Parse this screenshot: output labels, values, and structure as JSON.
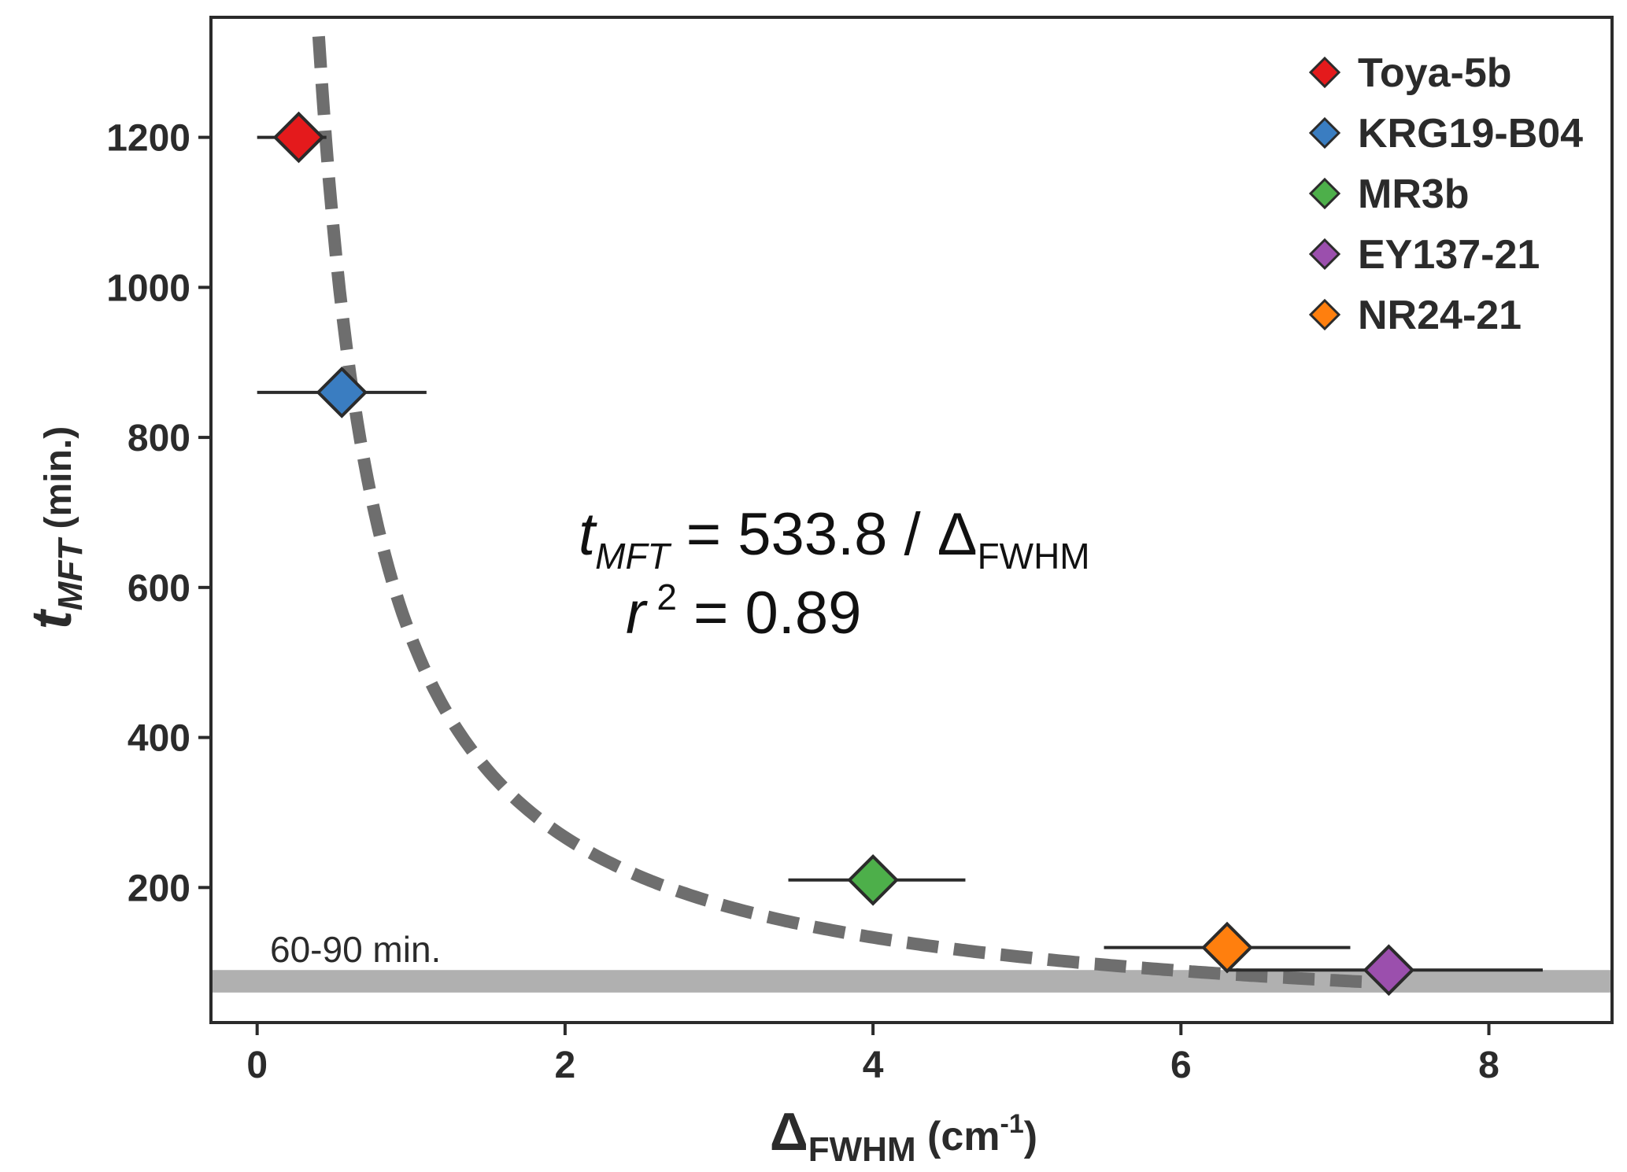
{
  "chart_data": {
    "type": "scatter",
    "title": "",
    "xlabel": {
      "main": "Δ",
      "sub": "FWHM",
      "unit_open": " (cm",
      "unit_sup": "-1",
      "unit_close": ")"
    },
    "ylabel": {
      "main": "t",
      "sub": "MFT",
      "unit": " (min.)"
    },
    "xlim": [
      -0.3,
      8.8
    ],
    "ylim": [
      20,
      1360
    ],
    "xticks": [
      0,
      2,
      4,
      6,
      8
    ],
    "yticks": [
      200,
      400,
      600,
      800,
      1000,
      1200
    ],
    "series": [
      {
        "name": "Toya-5b",
        "color": "#e41a1c",
        "x": 0.27,
        "y": 1200,
        "xerr_low": 0.0,
        "xerr_high": 0.45
      },
      {
        "name": "KRG19-B04",
        "color": "#3a7dc1",
        "x": 0.55,
        "y": 860,
        "xerr_low": 0.0,
        "xerr_high": 1.1
      },
      {
        "name": "MR3b",
        "color": "#4daf4a",
        "x": 4.0,
        "y": 210,
        "xerr_low": 3.45,
        "xerr_high": 4.6
      },
      {
        "name": "EY137-21",
        "color": "#9b4fad",
        "x": 7.35,
        "y": 90,
        "xerr_low": 6.3,
        "xerr_high": 8.35
      },
      {
        "name": "NR24-21",
        "color": "#ff7f0e",
        "x": 6.3,
        "y": 120,
        "xerr_low": 5.5,
        "xerr_high": 7.1
      }
    ],
    "fit": {
      "type": "inverse",
      "coefficient": 533.8,
      "x_start": 0.4,
      "x_end": 7.2,
      "color": "#6e6e6e"
    },
    "band": {
      "y_low": 60,
      "y_high": 90,
      "label": "60-90 min.",
      "color": "#b0b0b0"
    },
    "annotation": {
      "eq_var": "t",
      "eq_var_sub": "MFT",
      "eq_rhs": " = 533.8 / Δ",
      "eq_rhs_sub": "FWHM",
      "r_var": "r",
      "r_sup": "2",
      "r_rhs": " = 0.89"
    },
    "legend_position": "top-right",
    "grid": false
  }
}
